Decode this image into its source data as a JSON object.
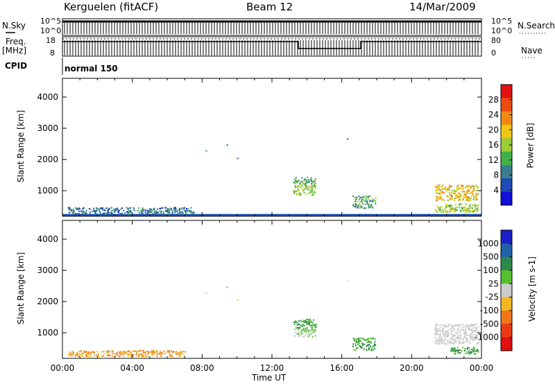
{
  "header": {
    "title": "Kerguelen (fitACF)",
    "beam": "Beam 12",
    "date": "14/Mar/2009"
  },
  "top_panel": {
    "left_labels": [
      "N.Sky",
      "Freq.",
      "[MHz]",
      "CPID"
    ],
    "right_labels": [
      "N.Search",
      "Nave"
    ],
    "nsky_ticks": [
      "10^5",
      "10^0"
    ],
    "nsearch_ticks": [
      "10^5",
      "10^0"
    ],
    "freq_ticks": [
      "18",
      "8"
    ],
    "nave_ticks": [
      "80",
      "0"
    ],
    "cpid_text": "normal 150"
  },
  "x_axis": {
    "label": "Time UT",
    "ticks": [
      "00:00",
      "04:00",
      "08:00",
      "12:00",
      "16:00",
      "20:00",
      "00:00"
    ]
  },
  "colors": {
    "power_scale": [
      "#1010d8",
      "#1e4cb4",
      "#3a7f8f",
      "#43b04a",
      "#9ccc35",
      "#f2c713",
      "#f08a14",
      "#ec4c12",
      "#e01010"
    ],
    "velocity_scale": [
      "#1a20c8",
      "#2260a8",
      "#2c8a4c",
      "#58c030",
      "#cccccc",
      "#f2b620",
      "#f07818",
      "#ea3a12",
      "#e01010"
    ]
  },
  "chart_data": [
    {
      "type": "heatmap",
      "title": "",
      "xlabel": "",
      "ylabel": "Slant Range [km]",
      "xlim": [
        0,
        24
      ],
      "ylim": [
        180,
        4600
      ],
      "yticks": [
        "1000",
        "2000",
        "3000",
        "4000"
      ],
      "colorbar": {
        "label": "Power [dB]",
        "ticks": [
          "4",
          "8",
          "12",
          "16",
          "20",
          "24",
          "28"
        ],
        "range": [
          0,
          32
        ]
      },
      "echo_regions": [
        {
          "time": [
            0.3,
            7.5
          ],
          "range": [
            260,
            480
          ],
          "value": 8
        },
        {
          "time": [
            13.2,
            14.5
          ],
          "range": [
            1150,
            1450
          ],
          "value": 12
        },
        {
          "time": [
            13.2,
            14.5
          ],
          "range": [
            880,
            1150
          ],
          "value": 16
        },
        {
          "time": [
            16.6,
            17.9
          ],
          "range": [
            450,
            850
          ],
          "value": 12
        },
        {
          "time": [
            21.3,
            23.8
          ],
          "range": [
            700,
            1200
          ],
          "value": 20
        },
        {
          "time": [
            21.3,
            23.8
          ],
          "range": [
            330,
            600
          ],
          "value": 16
        }
      ],
      "isolated_points": [
        {
          "time": 8.2,
          "range": 2300,
          "value": 8
        },
        {
          "time": 9.4,
          "range": 2480,
          "value": 4
        },
        {
          "time": 10.0,
          "range": 2060,
          "value": 4
        },
        {
          "time": 16.3,
          "range": 2680,
          "value": 4
        }
      ]
    },
    {
      "type": "heatmap",
      "title": "",
      "xlabel": "Time UT",
      "ylabel": "Slant Range [km]",
      "xlim": [
        0,
        24
      ],
      "ylim": [
        180,
        4600
      ],
      "yticks": [
        "1000",
        "2000",
        "3000",
        "4000"
      ],
      "colorbar": {
        "label": "Velocity [m s-1]",
        "ticks": [
          "1000",
          "500",
          "100",
          "25",
          "-25",
          "-100",
          "-500",
          "-1000"
        ],
        "range": [
          -1200,
          1200
        ]
      },
      "echo_regions": [
        {
          "time": [
            0.3,
            7.0
          ],
          "range": [
            260,
            450
          ],
          "value": -100
        },
        {
          "time": [
            13.2,
            14.5
          ],
          "range": [
            1150,
            1450
          ],
          "value": 100
        },
        {
          "time": [
            13.2,
            14.5
          ],
          "range": [
            880,
            1150
          ],
          "value": 25
        },
        {
          "time": [
            16.6,
            17.9
          ],
          "range": [
            450,
            850
          ],
          "value": 100
        },
        {
          "time": [
            21.3,
            23.8
          ],
          "range": [
            650,
            1300
          ],
          "value": 0
        },
        {
          "time": [
            22.2,
            23.8
          ],
          "range": [
            330,
            560
          ],
          "value": 100
        }
      ],
      "isolated_points": [
        {
          "time": 8.2,
          "range": 2300,
          "value": 0
        },
        {
          "time": 9.4,
          "range": 2480,
          "value": -500
        },
        {
          "time": 10.0,
          "range": 2060,
          "value": -100
        },
        {
          "time": 16.3,
          "range": 2680,
          "value": 0
        }
      ]
    }
  ]
}
